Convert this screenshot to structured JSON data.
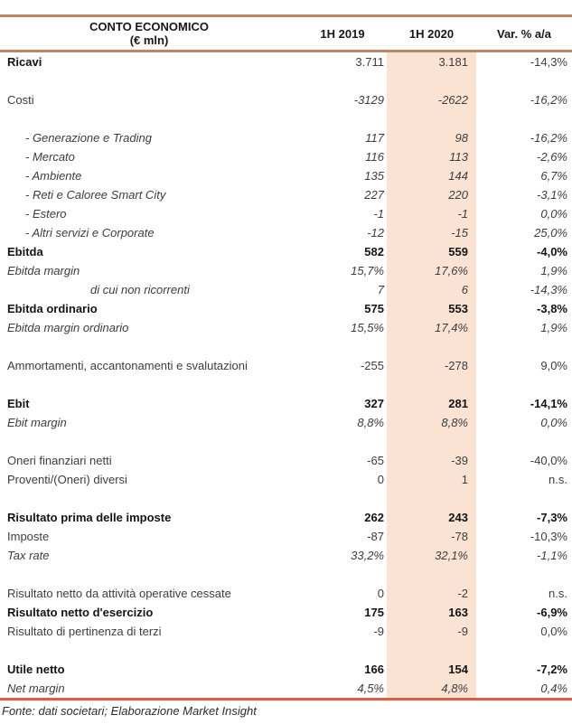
{
  "table": {
    "header": {
      "title_line1": "CONTO ECONOMICO",
      "title_line2": "(€ mln)",
      "col_2019": "1H 2019",
      "col_2020": "1H 2020",
      "col_var": "Var. % a/a"
    },
    "rows": [
      {
        "label": "Ricavi",
        "v2019": "3.711",
        "v2020": "3.181",
        "var": "-14,3%",
        "style": "boldlabel",
        "gap": false
      },
      {
        "label": "Costi",
        "v2019": "-3129",
        "v2020": "-2622",
        "var": "-16,2%",
        "style": "italicvals",
        "gap": true
      },
      {
        "label": "- Generazione e Trading",
        "v2019": "117",
        "v2020": "98",
        "var": "-16,2%",
        "style": "sub",
        "gap": true
      },
      {
        "label": "- Mercato",
        "v2019": "116",
        "v2020": "113",
        "var": "-2,6%",
        "style": "sub",
        "gap": false
      },
      {
        "label": "- Ambiente",
        "v2019": "135",
        "v2020": "144",
        "var": "6,7%",
        "style": "sub",
        "gap": false
      },
      {
        "label": "- Reti e Caloree Smart City",
        "v2019": "227",
        "v2020": "220",
        "var": "-3,1%",
        "style": "sub",
        "gap": false
      },
      {
        "label": "- Estero",
        "v2019": "-1",
        "v2020": "-1",
        "var": "0,0%",
        "style": "sub",
        "gap": false
      },
      {
        "label": "- Altri servizi e Corporate",
        "v2019": "-12",
        "v2020": "-15",
        "var": "25,0%",
        "style": "sub",
        "gap": false
      },
      {
        "label": "Ebitda",
        "v2019": "582",
        "v2020": "559",
        "var": "-4,0%",
        "style": "bold",
        "gap": false
      },
      {
        "label": "Ebitda margin",
        "v2019": "15,7%",
        "v2020": "17,6%",
        "var": "1,9%",
        "style": "italic",
        "gap": false
      },
      {
        "label": "di cui non ricorrenti",
        "v2019": "7",
        "v2020": "6",
        "var": "-14,3%",
        "style": "deep",
        "gap": false
      },
      {
        "label": "Ebitda ordinario",
        "v2019": "575",
        "v2020": "553",
        "var": "-3,8%",
        "style": "bold",
        "gap": false
      },
      {
        "label": "Ebitda margin ordinario",
        "v2019": "15,5%",
        "v2020": "17,4%",
        "var": "1,9%",
        "style": "italic",
        "gap": false
      },
      {
        "label": "Ammortamenti, accantonamenti e svalutazioni",
        "v2019": "-255",
        "v2020": "-278",
        "var": "9,0%",
        "style": "normal",
        "gap": true
      },
      {
        "label": "Ebit",
        "v2019": "327",
        "v2020": "281",
        "var": "-14,1%",
        "style": "bold",
        "gap": true
      },
      {
        "label": "Ebit margin",
        "v2019": "8,8%",
        "v2020": "8,8%",
        "var": "0,0%",
        "style": "italic",
        "gap": false
      },
      {
        "label": "Oneri finanziari netti",
        "v2019": "-65",
        "v2020": "-39",
        "var": "-40,0%",
        "style": "normal",
        "gap": true
      },
      {
        "label": "Proventi/(Oneri) diversi",
        "v2019": "0",
        "v2020": "1",
        "var": "n.s.",
        "style": "normal",
        "gap": false
      },
      {
        "label": "Risultato prima delle imposte",
        "v2019": "262",
        "v2020": "243",
        "var": "-7,3%",
        "style": "bold",
        "gap": true
      },
      {
        "label": "Imposte",
        "v2019": "-87",
        "v2020": "-78",
        "var": "-10,3%",
        "style": "normal",
        "gap": false
      },
      {
        "label": "Tax rate",
        "v2019": "33,2%",
        "v2020": "32,1%",
        "var": "-1,1%",
        "style": "italic",
        "gap": false
      },
      {
        "label": "Risultato netto da attività operative cessate",
        "v2019": "0",
        "v2020": "-2",
        "var": "n.s.",
        "style": "normal",
        "gap": true
      },
      {
        "label": "Risultato netto d'esercizio",
        "v2019": "175",
        "v2020": "163",
        "var": "-6,9%",
        "style": "bold",
        "gap": false
      },
      {
        "label": "Risultato di pertinenza di terzi",
        "v2019": "-9",
        "v2020": "-9",
        "var": "0,0%",
        "style": "normal",
        "gap": false
      },
      {
        "label": "Utile netto",
        "v2019": "166",
        "v2020": "154",
        "var": "-7,2%",
        "style": "bold",
        "gap": true
      },
      {
        "label": "Net margin",
        "v2019": "4,5%",
        "v2020": "4,8%",
        "var": "0,4%",
        "style": "italic",
        "gap": false
      }
    ],
    "footer": "Fonte: dati societari; Elaborazione Market Insight"
  },
  "colors": {
    "header_line": "#c08466",
    "bottom_line": "#e85a40",
    "column_highlight": "#fae3d3"
  }
}
